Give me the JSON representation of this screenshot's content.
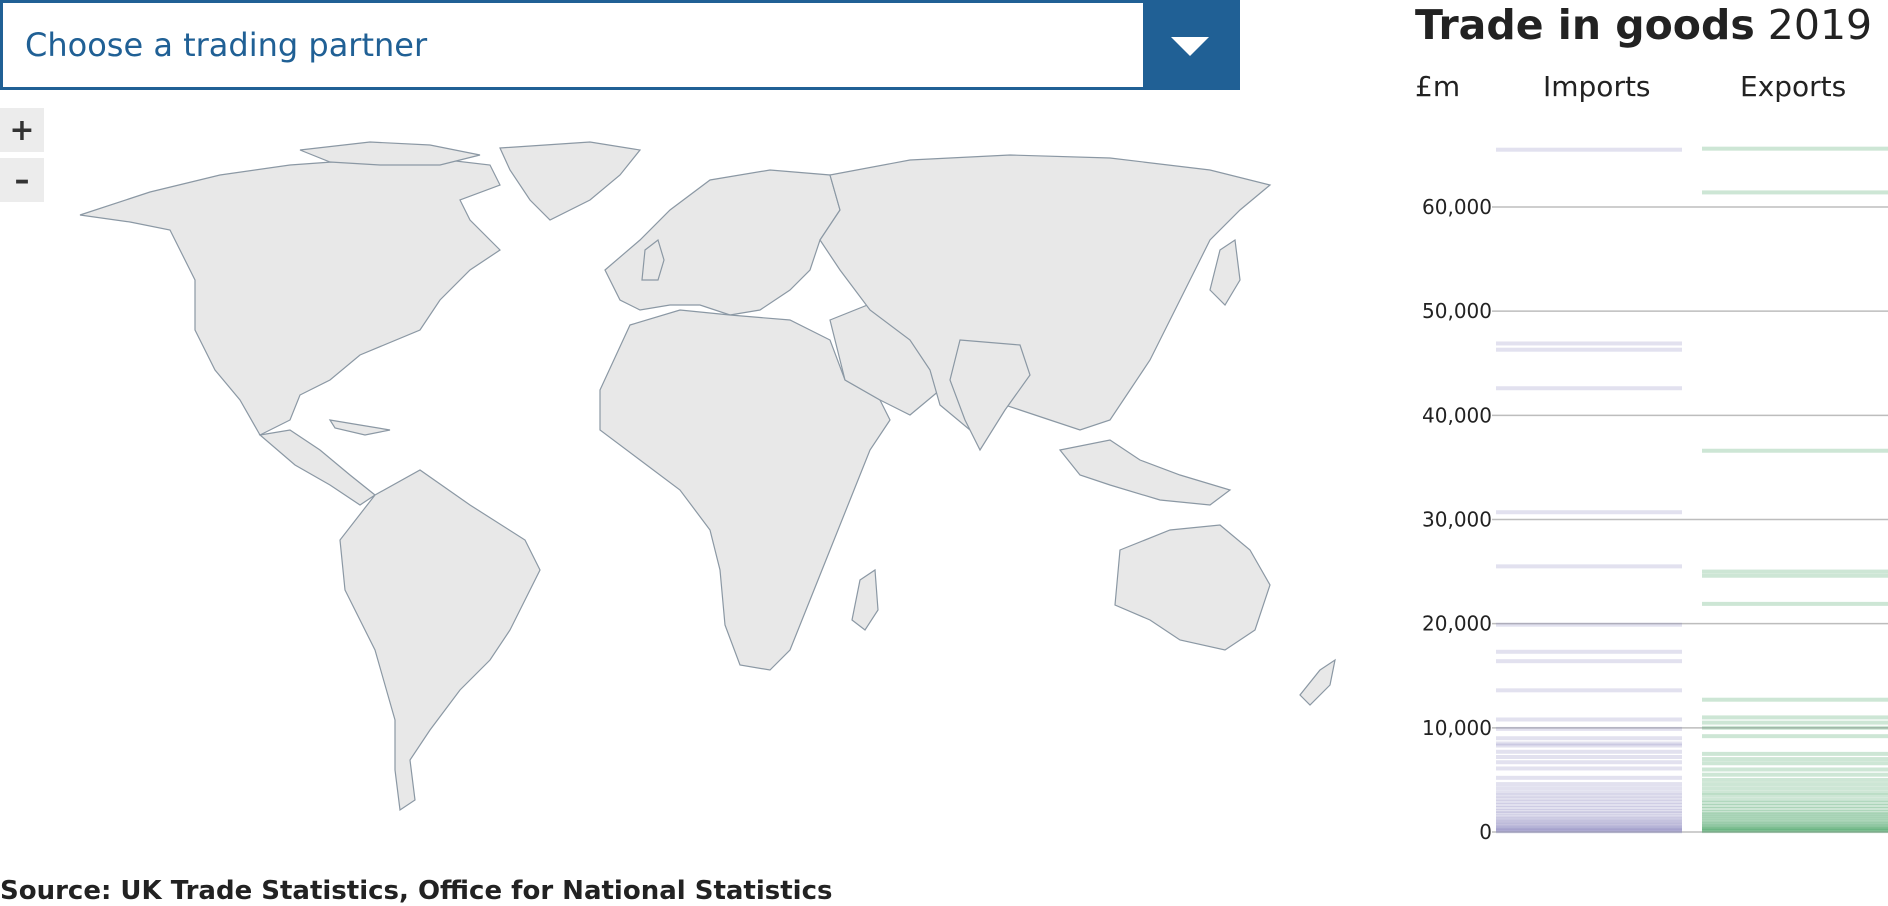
{
  "dropdown": {
    "placeholder": "Choose a trading partner",
    "icon": "chevron-down-icon"
  },
  "zoom": {
    "in_label": "+",
    "out_label": "–"
  },
  "panel": {
    "title_bold": "Trade in goods",
    "title_year": "2019",
    "unit": "£m",
    "imports_label": "Imports",
    "exports_label": "Exports"
  },
  "source": "Source: UK Trade Statistics, Office for National Statistics",
  "colors": {
    "accent": "#206095",
    "imports": "#7b76b8",
    "exports": "#1a8b3f",
    "land": "#e8e8e8",
    "border": "#8b98a4"
  },
  "chart_data": {
    "type": "strip",
    "ylim": [
      0,
      70000
    ],
    "yticks": [
      0,
      10000,
      20000,
      30000,
      40000,
      50000,
      60000
    ],
    "tick_labels": [
      "0",
      "10,000",
      "20,000",
      "30,000",
      "40,000",
      "50,000",
      "60,000"
    ],
    "series": [
      {
        "name": "Imports",
        "values": [
          65500,
          46900,
          46300,
          42600,
          30700,
          25500,
          19900,
          17300,
          16400,
          13600,
          10800,
          9900,
          9000,
          8500,
          8300,
          7700,
          7200,
          6700,
          6100,
          5200,
          4600,
          4200,
          3800,
          3500,
          3200,
          2900,
          2600,
          2300,
          2000,
          1800,
          1500,
          1300,
          1100,
          950,
          800,
          650,
          500,
          400,
          300,
          200,
          120,
          60
        ]
      },
      {
        "name": "Exports",
        "values": [
          65600,
          61400,
          36600,
          25000,
          24600,
          21900,
          12700,
          11000,
          10500,
          10000,
          9200,
          7500,
          7000,
          6600,
          6000,
          5500,
          5000,
          4600,
          4200,
          3800,
          3500,
          3100,
          2800,
          2500,
          2200,
          1900,
          1700,
          1500,
          1300,
          1100,
          900,
          750,
          600,
          450,
          350,
          250,
          150,
          80
        ]
      }
    ]
  }
}
